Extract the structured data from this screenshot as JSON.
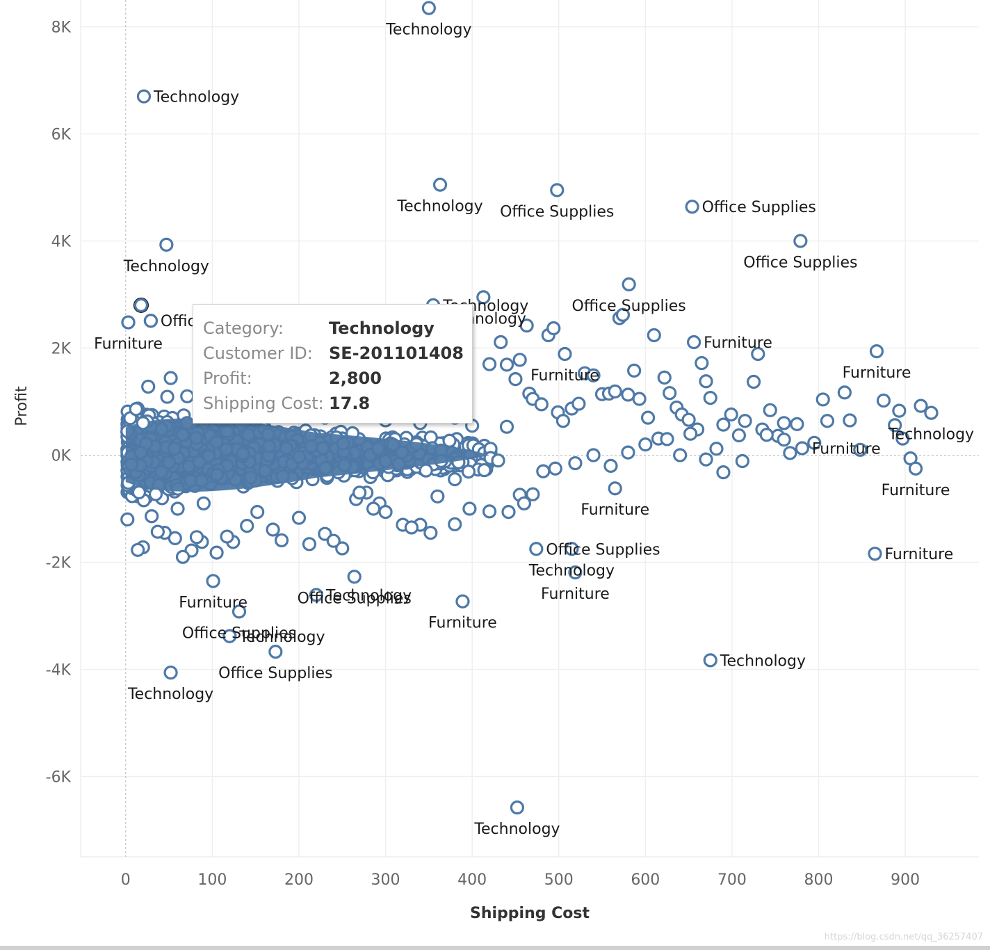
{
  "chart_data": {
    "type": "scatter",
    "xlabel": "Shipping Cost",
    "ylabel": "Profit",
    "xlim": [
      -52,
      985
    ],
    "ylim": [
      -7500,
      8500
    ],
    "x_ticks": [
      0,
      100,
      200,
      300,
      400,
      500,
      600,
      700,
      800,
      900
    ],
    "x_tick_labels": [
      "0",
      "100",
      "200",
      "300",
      "400",
      "500",
      "600",
      "700",
      "800",
      "900"
    ],
    "y_ticks": [
      8000,
      6000,
      4000,
      2000,
      0,
      -2000,
      -4000,
      -6000
    ],
    "y_tick_labels": [
      "8K",
      "6K",
      "4K",
      "2K",
      "0K",
      "-2K",
      "-4K",
      "-6K"
    ],
    "grid": true,
    "marker": "hollow-circle",
    "mark_color": "#4e79a7",
    "labeled_points": [
      {
        "x": 350,
        "y": 8350,
        "label": "Technology"
      },
      {
        "x": 21,
        "y": 6700,
        "label": "Technology"
      },
      {
        "x": 363,
        "y": 5050,
        "label": "Technology"
      },
      {
        "x": 498,
        "y": 4950,
        "label": "Office Supplies"
      },
      {
        "x": 654,
        "y": 4640,
        "label": "Office Supplies"
      },
      {
        "x": 779,
        "y": 4000,
        "label": "Office Supplies"
      },
      {
        "x": 47,
        "y": 3930,
        "label": "Technology"
      },
      {
        "x": 355,
        "y": 2800,
        "label": "Technology"
      },
      {
        "x": 413,
        "y": 2950,
        "label": "Technology"
      },
      {
        "x": 581,
        "y": 3190,
        "label": "Office Supplies"
      },
      {
        "x": 656,
        "y": 2110,
        "label": "Furniture"
      },
      {
        "x": 507,
        "y": 1890,
        "label": "Furniture"
      },
      {
        "x": 3,
        "y": 2480,
        "label": "Furniture"
      },
      {
        "x": 29,
        "y": 2510,
        "label": "Office Supplies"
      },
      {
        "x": 867,
        "y": 1940,
        "label": "Furniture"
      },
      {
        "x": 930,
        "y": 790,
        "label": "Technology"
      },
      {
        "x": 781,
        "y": 130,
        "label": "Furniture"
      },
      {
        "x": 912,
        "y": -250,
        "label": "Furniture"
      },
      {
        "x": 565,
        "y": -620,
        "label": "Furniture"
      },
      {
        "x": 474,
        "y": -1750,
        "label": "Office Supplies"
      },
      {
        "x": 515,
        "y": -1750,
        "label": "Technology"
      },
      {
        "x": 519,
        "y": -2190,
        "label": "Furniture"
      },
      {
        "x": 865,
        "y": -1840,
        "label": "Furniture"
      },
      {
        "x": 264,
        "y": -2270,
        "label": "Office Supplies"
      },
      {
        "x": 101,
        "y": -2350,
        "label": "Furniture"
      },
      {
        "x": 220,
        "y": -2610,
        "label": "Technology"
      },
      {
        "x": 389,
        "y": -2730,
        "label": "Furniture"
      },
      {
        "x": 131,
        "y": -2920,
        "label": "Office Supplies"
      },
      {
        "x": 120,
        "y": -3380,
        "label": "Technology"
      },
      {
        "x": 173,
        "y": -3670,
        "label": "Office Supplies"
      },
      {
        "x": 52,
        "y": -4060,
        "label": "Technology"
      },
      {
        "x": 675,
        "y": -3830,
        "label": "Technology"
      },
      {
        "x": 452,
        "y": -6580,
        "label": "Technology"
      }
    ],
    "points": [
      [
        17.8,
        2800
      ],
      [
        3,
        2480
      ],
      [
        29,
        2510
      ],
      [
        26,
        1280
      ],
      [
        52,
        1440
      ],
      [
        48,
        1090
      ],
      [
        12,
        860
      ],
      [
        20,
        600
      ],
      [
        71,
        1100
      ],
      [
        95,
        980
      ],
      [
        130,
        900
      ],
      [
        160,
        850
      ],
      [
        190,
        800
      ],
      [
        230,
        700
      ],
      [
        260,
        760
      ],
      [
        300,
        650
      ],
      [
        340,
        600
      ],
      [
        380,
        700
      ],
      [
        400,
        550
      ],
      [
        420,
        1700
      ],
      [
        433,
        2110
      ],
      [
        440,
        1690
      ],
      [
        450,
        1420
      ],
      [
        455,
        1780
      ],
      [
        463,
        2420
      ],
      [
        466,
        1150
      ],
      [
        470,
        1050
      ],
      [
        480,
        950
      ],
      [
        488,
        2240
      ],
      [
        494,
        2370
      ],
      [
        499,
        800
      ],
      [
        505,
        640
      ],
      [
        515,
        870
      ],
      [
        523,
        960
      ],
      [
        530,
        1530
      ],
      [
        540,
        1490
      ],
      [
        550,
        1140
      ],
      [
        558,
        1150
      ],
      [
        565,
        1190
      ],
      [
        570,
        2560
      ],
      [
        574,
        2620
      ],
      [
        580,
        1130
      ],
      [
        587,
        1580
      ],
      [
        593,
        1050
      ],
      [
        603,
        700
      ],
      [
        610,
        2240
      ],
      [
        615,
        310
      ],
      [
        622,
        1450
      ],
      [
        628,
        1160
      ],
      [
        636,
        890
      ],
      [
        642,
        760
      ],
      [
        650,
        660
      ],
      [
        660,
        480
      ],
      [
        665,
        1720
      ],
      [
        670,
        1380
      ],
      [
        675,
        1070
      ],
      [
        682,
        120
      ],
      [
        690,
        570
      ],
      [
        699,
        760
      ],
      [
        708,
        370
      ],
      [
        715,
        640
      ],
      [
        725,
        1370
      ],
      [
        730,
        1890
      ],
      [
        735,
        480
      ],
      [
        744,
        840
      ],
      [
        753,
        360
      ],
      [
        760,
        290
      ],
      [
        767,
        40
      ],
      [
        775,
        580
      ],
      [
        795,
        230
      ],
      [
        805,
        1040
      ],
      [
        810,
        640
      ],
      [
        830,
        1170
      ],
      [
        836,
        650
      ],
      [
        848,
        100
      ],
      [
        875,
        1020
      ],
      [
        888,
        560
      ],
      [
        893,
        830
      ],
      [
        897,
        310
      ],
      [
        906,
        -60
      ],
      [
        918,
        920
      ],
      [
        930,
        790
      ],
      [
        670,
        -80
      ],
      [
        690,
        -320
      ],
      [
        712,
        -110
      ],
      [
        760,
        600
      ],
      [
        740,
        380
      ],
      [
        440,
        530
      ],
      [
        380,
        -450
      ],
      [
        360,
        -770
      ],
      [
        340,
        -1300
      ],
      [
        320,
        -1300
      ],
      [
        293,
        -900
      ],
      [
        286,
        -1000
      ],
      [
        278,
        -700
      ],
      [
        266,
        -820
      ],
      [
        250,
        -1740
      ],
      [
        230,
        -1470
      ],
      [
        212,
        -1660
      ],
      [
        200,
        -1170
      ],
      [
        180,
        -1590
      ],
      [
        170,
        -1390
      ],
      [
        152,
        -1060
      ],
      [
        140,
        -1320
      ],
      [
        124,
        -1620
      ],
      [
        117,
        -1520
      ],
      [
        105,
        -1820
      ],
      [
        88,
        -1620
      ],
      [
        82,
        -1530
      ],
      [
        76,
        -1780
      ],
      [
        66,
        -1900
      ],
      [
        57,
        -1550
      ],
      [
        45,
        -1450
      ],
      [
        37,
        -1430
      ],
      [
        20,
        -1720
      ],
      [
        14,
        -1770
      ],
      [
        2,
        -1200
      ],
      [
        30,
        -1140
      ],
      [
        60,
        -1000
      ],
      [
        90,
        -900
      ],
      [
        397,
        -1000
      ],
      [
        414,
        -280
      ],
      [
        430,
        -100
      ],
      [
        455,
        -740
      ],
      [
        470,
        -730
      ],
      [
        482,
        -300
      ],
      [
        496,
        -250
      ],
      [
        519,
        -150
      ],
      [
        540,
        0
      ],
      [
        560,
        -200
      ],
      [
        580,
        50
      ],
      [
        600,
        200
      ],
      [
        625,
        300
      ],
      [
        640,
        0
      ],
      [
        652,
        400
      ],
      [
        420,
        -1050
      ],
      [
        442,
        -1060
      ],
      [
        460,
        -900
      ],
      [
        380,
        -1290
      ],
      [
        352,
        -1450
      ],
      [
        330,
        -1350
      ],
      [
        300,
        -1060
      ],
      [
        270,
        -700
      ],
      [
        240,
        -1600
      ]
    ]
  },
  "tooltip": {
    "rows": [
      {
        "key": "Category:",
        "value": "Technology"
      },
      {
        "key": "Customer ID:",
        "value": "SE-201101408"
      },
      {
        "key": "Profit:",
        "value": "2,800"
      },
      {
        "key": "Shipping Cost:",
        "value": "17.8"
      }
    ]
  },
  "watermark": "https://blog.csdn.net/qq_36257407"
}
